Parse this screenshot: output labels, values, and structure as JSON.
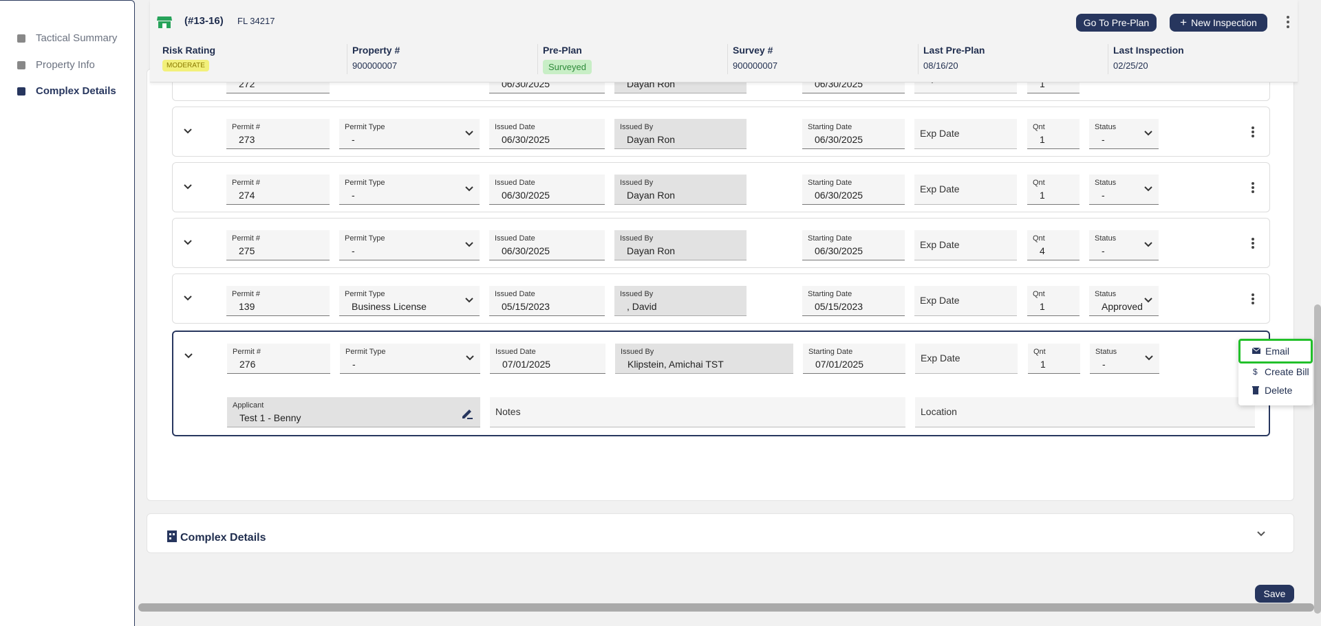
{
  "sidebar": {
    "items": [
      "Tactical Summary",
      "Property Info",
      "Complex Details"
    ]
  },
  "header": {
    "id": "(#13-16)",
    "address": "FL 34217",
    "buttons": [
      "Go To Pre-Plan",
      "New Inspection"
    ],
    "fields": [
      {
        "label": "Risk Rating",
        "value": "MODERATE"
      },
      {
        "label": "Property #",
        "value": "900000007"
      },
      {
        "label": "Pre-Plan",
        "value": "Surveyed"
      },
      {
        "label": "Survey #",
        "value": "900000007"
      },
      {
        "label": "Last Pre-Plan",
        "value": "08/16/20"
      },
      {
        "label": "Last Inspection",
        "value": "02/25/20"
      }
    ]
  },
  "permits": {
    "labels": {
      "permit": "Permit #",
      "type": "Permit Type",
      "issued_date": "Issued Date",
      "issued_by": "Issued By",
      "starting_date": "Starting Date",
      "exp_date": "Exp Date",
      "qnt": "Qnt",
      "status": "Status",
      "applicant": "Applicant",
      "notes": "Notes",
      "location": "Location"
    },
    "rows": [
      {
        "permit": "272",
        "issued_date": "06/30/2025",
        "issued_by": "Dayan Ron",
        "starting_date": "06/30/2025",
        "qnt": "1"
      },
      {
        "permit": "273",
        "type": "-",
        "issued_date": "06/30/2025",
        "issued_by": "Dayan Ron",
        "starting_date": "06/30/2025",
        "qnt": "1",
        "status": "-"
      },
      {
        "permit": "274",
        "type": "-",
        "issued_date": "06/30/2025",
        "issued_by": "Dayan Ron",
        "starting_date": "06/30/2025",
        "qnt": "1",
        "status": "-"
      },
      {
        "permit": "275",
        "type": "-",
        "issued_date": "06/30/2025",
        "issued_by": "Dayan Ron",
        "starting_date": "06/30/2025",
        "qnt": "4",
        "status": "-"
      },
      {
        "permit": "139",
        "type": "Business License",
        "issued_date": "05/15/2023",
        "issued_by": ", David",
        "starting_date": "05/15/2023",
        "qnt": "1",
        "status": "Approved"
      },
      {
        "permit": "276",
        "type": "-",
        "issued_date": "07/01/2025",
        "issued_by": "Klipstein, Amichai TST",
        "starting_date": "07/01/2025",
        "qnt": "1",
        "status": "-",
        "applicant": "Test 1 - Benny"
      }
    ]
  },
  "menu": [
    "Email",
    "Create Bill",
    "Delete"
  ],
  "section": {
    "title": "Complex Details"
  },
  "save": "Save"
}
